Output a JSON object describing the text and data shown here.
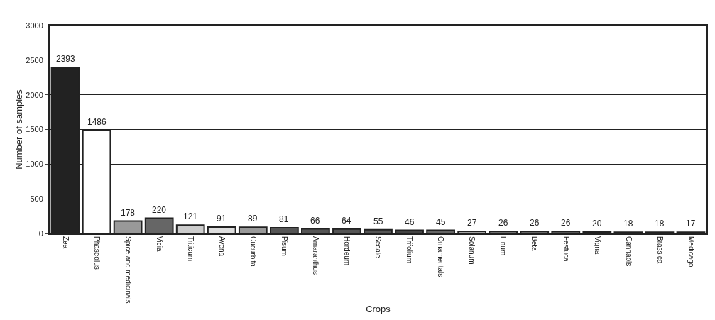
{
  "chart_data": {
    "type": "bar",
    "xlabel": "Crops",
    "ylabel": "Number of samples",
    "categories": [
      "Zea",
      "Phaseolus",
      "Spice and medicinals",
      "Vicia",
      "Triticum",
      "Avena",
      "Cucurbita",
      "Pisum",
      "Amaranthus",
      "Hordeum",
      "Secale",
      "Trifolium",
      "Ornamentals",
      "Solanum",
      "Linum",
      "Beta",
      "Festuca",
      "Vigna",
      "Cannabis",
      "Brassica",
      "Medicago"
    ],
    "values": [
      2393,
      1486,
      178,
      220,
      121,
      91,
      89,
      81,
      66,
      64,
      55,
      46,
      45,
      27,
      26,
      26,
      26,
      20,
      18,
      18,
      17
    ],
    "colors": [
      "#222222",
      "#ffffff",
      "#999999",
      "#666666",
      "#cccccc",
      "#dddddd",
      "#999999",
      "#555555",
      "#555555",
      "#555555",
      "#555555",
      "#444444",
      "#666666",
      "#cccccc",
      "#bbbbbb",
      "#aaaaaa",
      "#888888",
      "#999999",
      "#eeeeee",
      "#222222",
      "#ffffff"
    ],
    "ylim": [
      0,
      3000
    ],
    "yticks": [
      0,
      500,
      1000,
      1500,
      2000,
      2500,
      3000
    ],
    "grid": "y",
    "data_labels": true
  }
}
